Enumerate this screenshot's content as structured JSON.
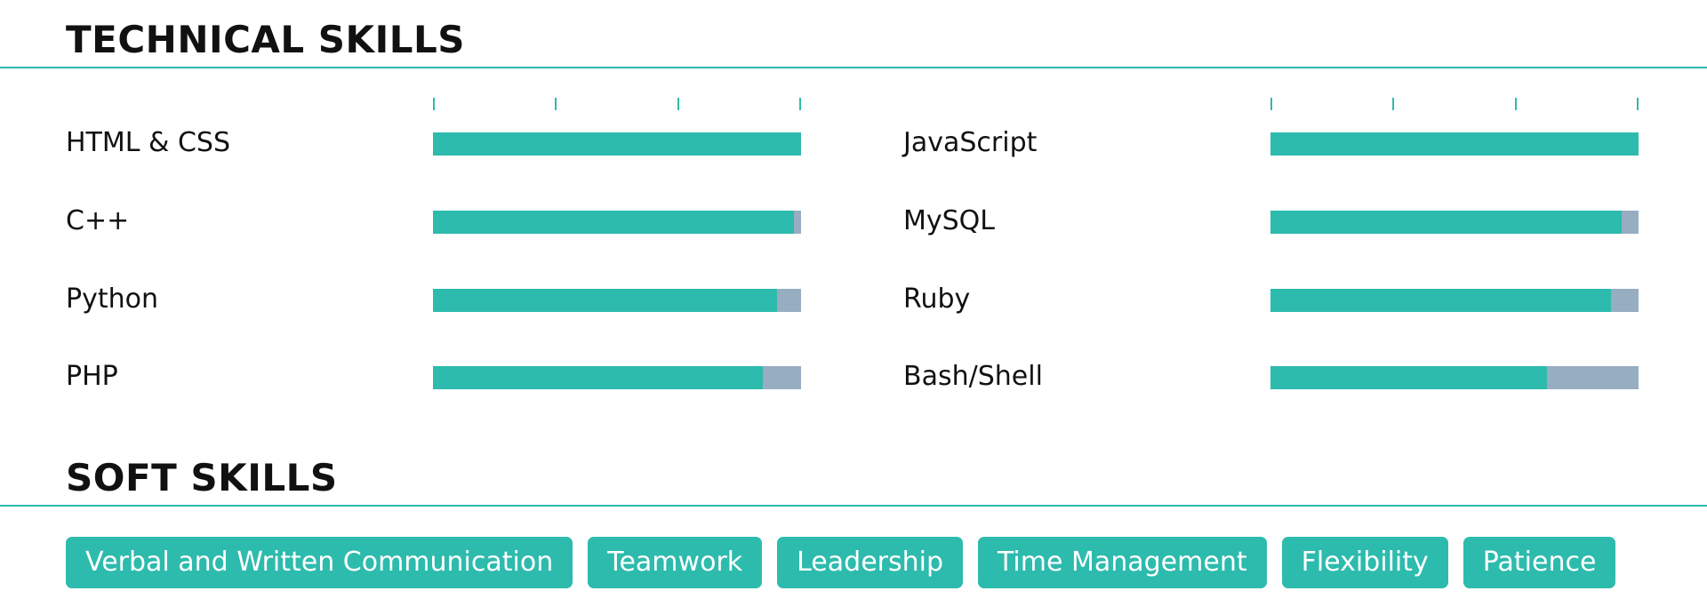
{
  "technical": {
    "title": "TECHNICAL SKILLS",
    "left": [
      {
        "name": "HTML & CSS",
        "level": 1.0
      },
      {
        "name": "C++",
        "level": 0.98
      },
      {
        "name": "Python",
        "level": 0.935
      },
      {
        "name": "PHP",
        "level": 0.895
      }
    ],
    "right": [
      {
        "name": "JavaScript",
        "level": 1.0
      },
      {
        "name": "MySQL",
        "level": 0.955
      },
      {
        "name": "Ruby",
        "level": 0.925
      },
      {
        "name": "Bash/Shell",
        "level": 0.75
      }
    ]
  },
  "soft": {
    "title": "SOFT SKILLS",
    "tags": [
      "Verbal and Written Communication",
      "Teamwork",
      "Leadership",
      "Time Management",
      "Flexibility",
      "Patience"
    ]
  },
  "colors": {
    "accent": "#2dbbad",
    "bar_track": "#97adc1"
  }
}
